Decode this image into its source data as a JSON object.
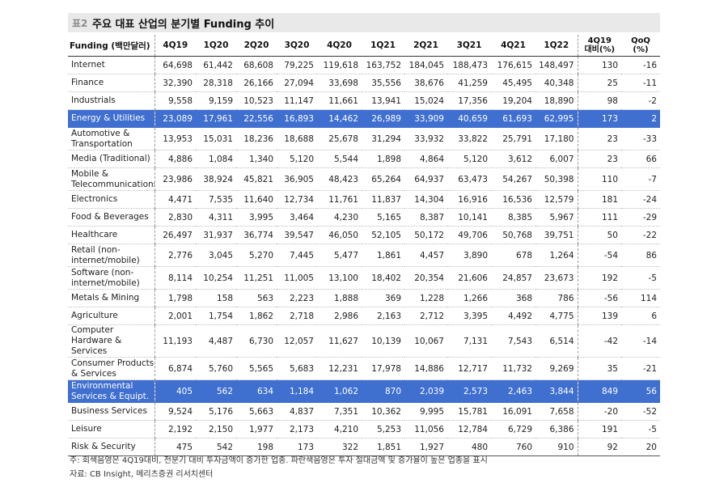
{
  "title": {
    "tag": "표2",
    "text": "주요 대표 산업의 분기별 Funding 추이"
  },
  "headers": {
    "label": "Funding (백만달러)",
    "quarters": [
      "4Q19",
      "1Q20",
      "2Q20",
      "3Q20",
      "4Q20",
      "1Q21",
      "2Q21",
      "3Q21",
      "4Q21",
      "1Q22"
    ],
    "vs4q19": [
      "4Q19",
      "대비(%)"
    ],
    "qoq": [
      "QoQ",
      "(%)"
    ]
  },
  "rows": [
    {
      "label": "Internet",
      "values": [
        "64,698",
        "61,442",
        "68,608",
        "79,225",
        "119,618",
        "163,752",
        "184,045",
        "188,473",
        "176,615",
        "148,497"
      ],
      "vs4q19": "130",
      "qoq": "-16",
      "highlight": false
    },
    {
      "label": "Finance",
      "values": [
        "32,390",
        "28,318",
        "26,166",
        "27,094",
        "33,698",
        "35,556",
        "38,676",
        "41,259",
        "45,495",
        "40,348"
      ],
      "vs4q19": "25",
      "qoq": "-11",
      "highlight": false
    },
    {
      "label": "Industrials",
      "values": [
        "9,558",
        "9,159",
        "10,523",
        "11,147",
        "11,661",
        "13,941",
        "15,024",
        "17,356",
        "19,204",
        "18,890"
      ],
      "vs4q19": "98",
      "qoq": "-2",
      "highlight": false
    },
    {
      "label": "Energy & Utilities",
      "values": [
        "23,089",
        "17,961",
        "22,556",
        "16,893",
        "14,462",
        "26,989",
        "33,909",
        "40,659",
        "61,693",
        "62,995"
      ],
      "vs4q19": "173",
      "qoq": "2",
      "highlight": true
    },
    {
      "label": "Automotive & Transportation",
      "values": [
        "13,953",
        "15,031",
        "18,236",
        "18,688",
        "25,678",
        "31,294",
        "33,932",
        "33,822",
        "25,791",
        "17,180"
      ],
      "vs4q19": "23",
      "qoq": "-33",
      "highlight": false
    },
    {
      "label": "Media (Traditional)",
      "values": [
        "4,886",
        "1,084",
        "1,340",
        "5,120",
        "5,544",
        "1,898",
        "4,864",
        "5,120",
        "3,612",
        "6,007"
      ],
      "vs4q19": "23",
      "qoq": "66",
      "highlight": false
    },
    {
      "label": "Mobile & Telecommunications",
      "values": [
        "23,986",
        "38,924",
        "45,821",
        "36,905",
        "48,423",
        "65,264",
        "64,937",
        "63,473",
        "54,267",
        "50,398"
      ],
      "vs4q19": "110",
      "qoq": "-7",
      "highlight": false
    },
    {
      "label": "Electronics",
      "values": [
        "4,471",
        "7,535",
        "11,640",
        "12,734",
        "11,761",
        "11,837",
        "14,304",
        "16,916",
        "16,536",
        "12,579"
      ],
      "vs4q19": "181",
      "qoq": "-24",
      "highlight": false
    },
    {
      "label": "Food & Beverages",
      "values": [
        "2,830",
        "4,311",
        "3,995",
        "3,464",
        "4,230",
        "5,165",
        "8,387",
        "10,141",
        "8,385",
        "5,967"
      ],
      "vs4q19": "111",
      "qoq": "-29",
      "highlight": false
    },
    {
      "label": "Healthcare",
      "values": [
        "26,497",
        "31,937",
        "36,774",
        "39,547",
        "46,050",
        "52,105",
        "50,172",
        "49,706",
        "50,768",
        "39,751"
      ],
      "vs4q19": "50",
      "qoq": "-22",
      "highlight": false
    },
    {
      "label": "Retail (non-internet/mobile)",
      "values": [
        "2,776",
        "3,045",
        "5,270",
        "7,445",
        "5,477",
        "1,861",
        "4,457",
        "3,890",
        "678",
        "1,264"
      ],
      "vs4q19": "-54",
      "qoq": "86",
      "highlight": false
    },
    {
      "label": "Software (non-internet/mobile)",
      "values": [
        "8,114",
        "10,254",
        "11,251",
        "11,005",
        "13,100",
        "18,402",
        "20,354",
        "21,606",
        "24,857",
        "23,673"
      ],
      "vs4q19": "192",
      "qoq": "-5",
      "highlight": false
    },
    {
      "label": "Metals & Mining",
      "values": [
        "1,798",
        "158",
        "563",
        "2,223",
        "1,888",
        "369",
        "1,228",
        "1,266",
        "368",
        "786"
      ],
      "vs4q19": "-56",
      "qoq": "114",
      "highlight": false
    },
    {
      "label": "Agriculture",
      "values": [
        "2,001",
        "1,754",
        "1,862",
        "2,718",
        "2,986",
        "2,163",
        "2,712",
        "3,395",
        "4,492",
        "4,775"
      ],
      "vs4q19": "139",
      "qoq": "6",
      "highlight": false
    },
    {
      "label": "Computer Hardware & Services",
      "values": [
        "11,193",
        "4,487",
        "6,730",
        "12,057",
        "11,627",
        "10,139",
        "10,067",
        "7,131",
        "7,543",
        "6,514"
      ],
      "vs4q19": "-42",
      "qoq": "-14",
      "highlight": false
    },
    {
      "label": "Consumer Products & Services",
      "values": [
        "6,874",
        "5,760",
        "5,565",
        "5,683",
        "12,231",
        "17,978",
        "14,886",
        "12,717",
        "11,732",
        "9,269"
      ],
      "vs4q19": "35",
      "qoq": "-21",
      "highlight": false
    },
    {
      "label": "Environmental Services & Equipt.",
      "values": [
        "405",
        "562",
        "634",
        "1,184",
        "1,062",
        "870",
        "2,039",
        "2,573",
        "2,463",
        "3,844"
      ],
      "vs4q19": "849",
      "qoq": "56",
      "highlight": true
    },
    {
      "label": "Business Services",
      "values": [
        "9,524",
        "5,176",
        "5,663",
        "4,837",
        "7,351",
        "10,362",
        "9,995",
        "15,781",
        "16,091",
        "7,658"
      ],
      "vs4q19": "-20",
      "qoq": "-52",
      "highlight": false
    },
    {
      "label": "Leisure",
      "values": [
        "2,192",
        "2,150",
        "1,977",
        "2,173",
        "4,210",
        "5,253",
        "11,056",
        "12,784",
        "6,729",
        "6,386"
      ],
      "vs4q19": "191",
      "qoq": "-5",
      "highlight": false
    },
    {
      "label": "Risk & Security",
      "values": [
        "475",
        "542",
        "198",
        "173",
        "322",
        "1,851",
        "1,927",
        "480",
        "760",
        "910"
      ],
      "vs4q19": "92",
      "qoq": "20",
      "highlight": false
    }
  ],
  "notes": {
    "footnote": "주: 회색음영은 4Q19대비, 전분기 대비 투자금액이 증가한 업종. 파란색음영은 투자 절대금액 및 증가율이 높은 업종을 표시",
    "source": "자료: CB Insight, 메리츠증권 리서치센터"
  },
  "colors": {
    "highlight": "#3f6fcf",
    "title_bg": "#e9e9e9"
  }
}
